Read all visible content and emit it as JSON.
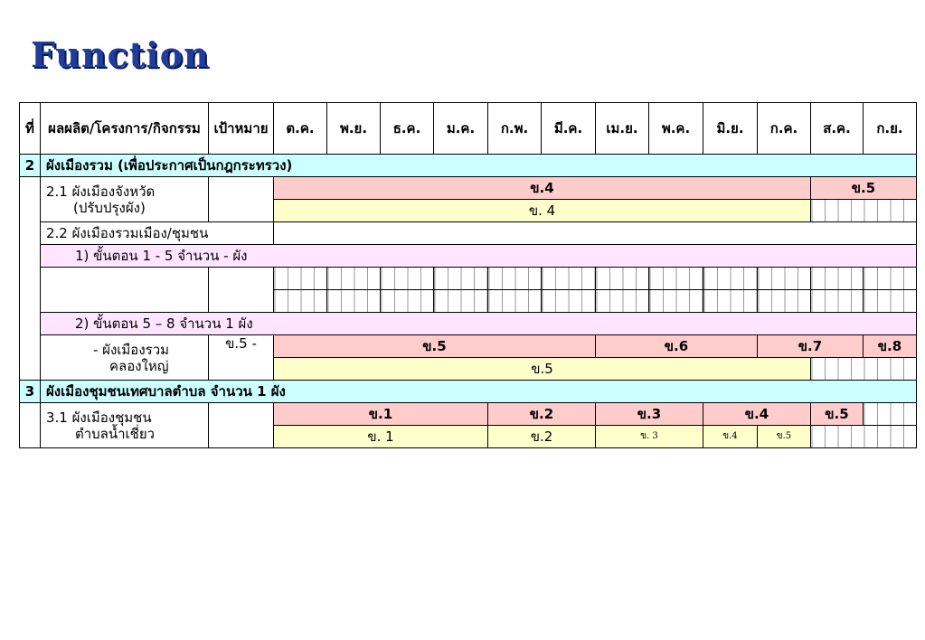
{
  "title": "Function",
  "header": {
    "no": "ที่",
    "product": "ผลผลิต/โครงการ/กิจกรรม",
    "target": "เป้าหมาย",
    "months": [
      "ต.ค.",
      "พ.ย.",
      "ธ.ค.",
      "ม.ค.",
      "ก.พ.",
      "มี.ค.",
      "เม.ย.",
      "พ.ค.",
      "มิ.ย.",
      "ก.ค.",
      "ส.ค.",
      "ก.ย."
    ]
  },
  "section2": {
    "no": "2",
    "title": "ผังเมืองรวม (เพื่อประกาศเป็นกฎกระทรวง)",
    "item_2_1": {
      "label_line1": "2.1 ผังเมืองจังหวัด",
      "label_line2": "(ปรับปรุงผัง)",
      "plan": [
        "ข.4",
        "ข.5"
      ],
      "actual": "ข. 4"
    },
    "item_2_2": {
      "label": "2.2 ผังเมืองรวมเมือง/ชุมชน"
    },
    "step1": "1) ขั้นตอน 1 - 5   จำนวน  -  ผัง",
    "step2": "2) ขั้นตอน 5 – 8  จำนวน  1  ผัง",
    "sub": {
      "label_line1": "- ผังเมืองรวม",
      "label_line2": "คลองใหญ่",
      "target": "ข.5 -",
      "plan": [
        "ข.5",
        "ข.6",
        "ข.7",
        "ข.8"
      ],
      "actual": "ข.5"
    }
  },
  "section3": {
    "no": "3",
    "title": "ผังเมืองชุมชนเทศบาลตำบล  จำนวน  1    ผัง",
    "item_3_1": {
      "label_line1": "3.1 ผังเมืองชุมชน",
      "label_line2": "ตำบลน้ำเชี่ยว",
      "plan": [
        "ข.1",
        "ข.2",
        "ข.3",
        "ข.4",
        "ข.5"
      ],
      "actual": [
        "ข. 1",
        "ข.2",
        "ข. 3",
        "ข.4",
        "ข.5"
      ]
    }
  },
  "colors": {
    "title": "#1f3d99",
    "section": "#ccffff",
    "plan": "#ffcccc",
    "actual": "#ffffcc",
    "step": "#ffe5ff"
  }
}
